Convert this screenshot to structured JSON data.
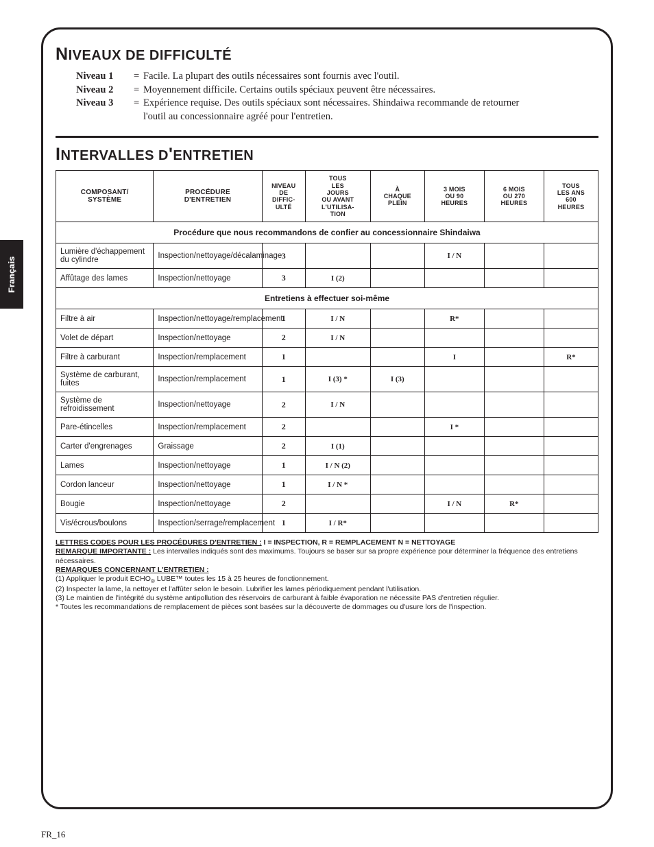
{
  "side_tab": "Français",
  "section1": {
    "title_html": "<span class='cap'>N</span>IVEAUX DE DIFFICULTÉ",
    "levels": [
      {
        "label": "Niveau 1",
        "text": "Facile. La plupart des outils nécessaires sont fournis avec l'outil."
      },
      {
        "label": "Niveau 2",
        "text": "Moyennement difficile. Certains outils spéciaux peuvent être nécessaires."
      },
      {
        "label": "Niveau 3",
        "text": "Expérience requise. Des outils spéciaux sont nécessaires. Shindaiwa recommande de retourner"
      }
    ],
    "level3_cont": "l'outil au concessionnaire agréé pour l'entretien."
  },
  "section2": {
    "title_html": "<span class='cap'>I</span>NTERVALLES D<span class='cap'>'</span>ENTRETIEN"
  },
  "table": {
    "col_widths": [
      "18%",
      "20%",
      "8%",
      "12%",
      "10%",
      "11%",
      "11%",
      "10%"
    ],
    "headers": [
      "COMPOSANT/\nSYSTÈME",
      "PROCÉDURE\nD'ENTRETIEN",
      "NIVEAU\nDE\nDIFFIC-\nULTÉ",
      "TOUS\nLES\nJOURS\nOU AVANT\nL'UTILISA-\nTION",
      "À\nCHAQUE\nPLEIN",
      "3 MOIS\nOU 90\nHEURES",
      "6 MOIS\nOU 270\nHEURES",
      "TOUS\nLES ANS\n600\nHEURES"
    ],
    "section1_label": "Procédure que nous recommandons de confier au concessionnaire Shindaiwa",
    "section1_rows": [
      {
        "comp": "Lumière d'échappement du cylindre",
        "proc": "Inspection/nettoyage/décalaminage",
        "lvl": "3",
        "c1": "",
        "c2": "",
        "c3": "I / N",
        "c4": "",
        "c5": ""
      },
      {
        "comp": "Affûtage des lames",
        "proc": "Inspection/nettoyage",
        "lvl": "3",
        "c1": "I (2)",
        "c2": "",
        "c3": "",
        "c4": "",
        "c5": ""
      }
    ],
    "section2_label": "Entretiens à effectuer soi-même",
    "section2_rows": [
      {
        "comp": "Filtre à air",
        "proc": "Inspection/nettoyage/remplacement",
        "lvl": "1",
        "c1": "I / N",
        "c2": "",
        "c3": "R*",
        "c4": "",
        "c5": ""
      },
      {
        "comp": "Volet de départ",
        "proc": "Inspection/nettoyage",
        "lvl": "2",
        "c1": "I / N",
        "c2": "",
        "c3": "",
        "c4": "",
        "c5": ""
      },
      {
        "comp": "Filtre à carburant",
        "proc": "Inspection/remplacement",
        "lvl": "1",
        "c1": "",
        "c2": "",
        "c3": "I",
        "c4": "",
        "c5": "R*"
      },
      {
        "comp": "Système de carburant, fuites",
        "proc": "Inspection/remplacement",
        "lvl": "1",
        "c1": "I  (3)  *",
        "c2": "I (3)",
        "c3": "",
        "c4": "",
        "c5": ""
      },
      {
        "comp": "Système de refroidissement",
        "proc": "Inspection/nettoyage",
        "lvl": "2",
        "c1": "I / N",
        "c2": "",
        "c3": "",
        "c4": "",
        "c5": ""
      },
      {
        "comp": "Pare-étincelles",
        "proc": "Inspection/remplacement",
        "lvl": "2",
        "c1": "",
        "c2": "",
        "c3": "I *",
        "c4": "",
        "c5": ""
      },
      {
        "comp": "Carter d'engrenages",
        "proc": "Graissage",
        "lvl": "2",
        "c1": "I (1)",
        "c2": "",
        "c3": "",
        "c4": "",
        "c5": ""
      },
      {
        "comp": "Lames",
        "proc": "Inspection/nettoyage",
        "lvl": "1",
        "c1": "I / N (2)",
        "c2": "",
        "c3": "",
        "c4": "",
        "c5": ""
      },
      {
        "comp": "Cordon lanceur",
        "proc": "Inspection/nettoyage",
        "lvl": "1",
        "c1": "I / N *",
        "c2": "",
        "c3": "",
        "c4": "",
        "c5": ""
      },
      {
        "comp": "Bougie",
        "proc": "Inspection/nettoyage",
        "lvl": "2",
        "c1": "",
        "c2": "",
        "c3": "I / N",
        "c4": "R*",
        "c5": ""
      },
      {
        "comp": "Vis/écrous/boulons",
        "proc": "Inspection/serrage/remplacement",
        "lvl": "1",
        "c1": "I / R*",
        "c2": "",
        "c3": "",
        "c4": "",
        "c5": ""
      }
    ]
  },
  "notes": {
    "line1_label": "LETTRES CODES POUR LES PROCÉDURES D'ENTRETIEN :",
    "line1_text": "  I = INSPECTION, R = REMPLACEMENT N = NETTOYAGE",
    "line2_label": "REMARQUE IMPORTANTE :",
    "line2_text": " Les intervalles indiqués sont des maximums. Toujours se baser sur sa propre expérience pour déterminer la fréquence des entretiens nécessaires.",
    "line3_label": "REMARQUES CONCERNANT L'ENTRETIEN :",
    "n1": "(1) Appliquer le produit ECHO",
    "n1b": " LUBE™ toutes les 15 à 25 heures de fonctionnement.",
    "n2": "(2) Inspecter la lame, la nettoyer et l'affûter selon le besoin. Lubrifier les lames périodiquement pendant l'utilisation.",
    "n3": "(3) Le maintien de l'intégrité du système antipollution des réservoirs de carburant à faible évaporation ne nécessite PAS d'entretien régulier.",
    "n4": "* Toutes les recommandations de remplacement de pièces sont basées sur la découverte de dommages ou d'usure lors de l'inspection."
  },
  "page_number": "FR_16"
}
